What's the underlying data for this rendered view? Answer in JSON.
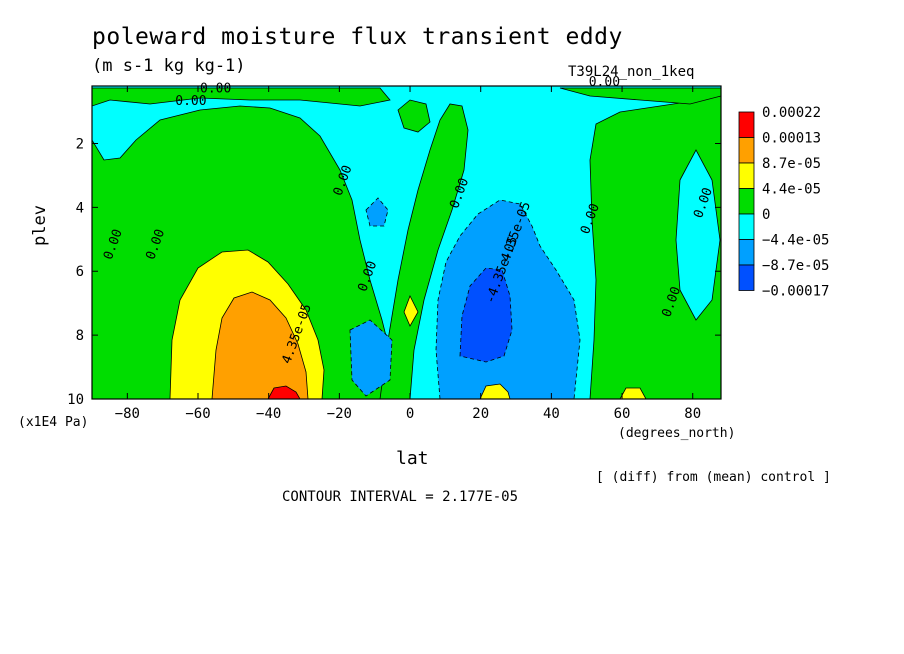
{
  "chart_data": {
    "type": "heatmap",
    "title": "poleward moisture flux transient eddy",
    "units": "(m s-1 kg kg-1)",
    "run_label": "T39L24_non_1keq",
    "xlabel": "lat",
    "x_units": "(degrees_north)",
    "ylabel": "plev",
    "y_units": "(x1E4 Pa)",
    "xlim": [
      -90,
      88
    ],
    "ylim": [
      10,
      0.2
    ],
    "x_ticks": [
      -80,
      -60,
      -40,
      -20,
      0,
      20,
      40,
      60,
      80
    ],
    "y_ticks": [
      2,
      4,
      6,
      8,
      10
    ],
    "note": "[ (diff) from (mean) control ]",
    "contour_interval": "CONTOUR INTERVAL = 2.177E-05",
    "legend": {
      "placement": "right",
      "colors": [
        "#ff0000",
        "#ffa000",
        "#ffff00",
        "#00dd00",
        "#00ffff",
        "#00a0ff",
        "#0050ff"
      ],
      "labels": [
        "0.00022",
        "0.00013",
        "8.7e-05",
        "4.4e-05",
        "0",
        "-4.4e-05",
        "-8.7e-05",
        "-0.00017"
      ]
    },
    "contour_labels": [
      {
        "text": "0.00",
        "lat": -55,
        "p": 0.4
      },
      {
        "text": "0.00",
        "lat": -62,
        "p": 0.8
      },
      {
        "text": "0.00",
        "lat": 55,
        "p": 0.2
      },
      {
        "text": "0.00",
        "lat": -83,
        "p": 5.2
      },
      {
        "text": "0.00",
        "lat": -71,
        "p": 5.2
      },
      {
        "text": "0.00",
        "lat": -18,
        "p": 3.2
      },
      {
        "text": "0.00",
        "lat": -11,
        "p": 6.2
      },
      {
        "text": "0.00",
        "lat": 15,
        "p": 3.6
      },
      {
        "text": "0.00",
        "lat": 52,
        "p": 4.4
      },
      {
        "text": "0.00",
        "lat": 84,
        "p": 3.9
      },
      {
        "text": "0.00",
        "lat": 75,
        "p": 7.0
      },
      {
        "text": "4.35e-05",
        "lat": -31,
        "p": 8.0
      },
      {
        "text": "-4.35e-05",
        "lat": 27,
        "p": 6.0
      },
      {
        "text": "4.35e-05",
        "lat": 31,
        "p": 4.8
      }
    ],
    "regions": [
      {
        "level": "pos1",
        "lat": [
          -88,
          -10
        ],
        "p": [
          1.5,
          10
        ],
        "shape": "southern green lobe"
      },
      {
        "level": "pos2",
        "lat": [
          -62,
          -20
        ],
        "p": [
          5.1,
          10
        ],
        "shape": "southern yellow core"
      },
      {
        "level": "pos3",
        "lat": [
          -55,
          -28
        ],
        "p": [
          6.6,
          10
        ],
        "shape": "southern orange core"
      },
      {
        "level": "pos4",
        "lat": [
          -36,
          -30
        ],
        "p": [
          9.6,
          10
        ],
        "shape": "red spot"
      },
      {
        "level": "neg2",
        "lat": [
          6,
          50
        ],
        "p": [
          3.9,
          9.6
        ],
        "shape": "northern blue lobe"
      },
      {
        "level": "neg3",
        "lat": [
          16,
          36
        ],
        "p": [
          6.2,
          9.0
        ],
        "shape": "northern dark blue core"
      },
      {
        "level": "pos1",
        "lat": [
          50,
          88
        ],
        "p": [
          0.9,
          10
        ],
        "shape": "northern green lobe"
      }
    ]
  }
}
